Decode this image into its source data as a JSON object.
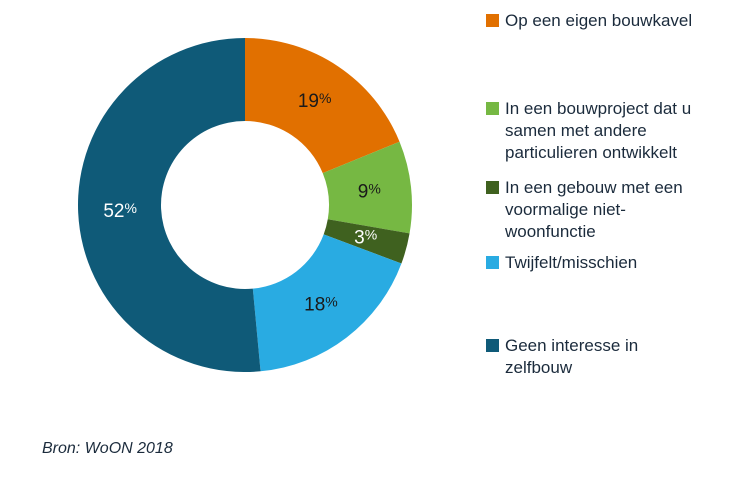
{
  "source_note": "Bron: WoON 2018",
  "chart_data": {
    "type": "pie",
    "subtype": "donut",
    "title": "",
    "unit": "%",
    "direction": "clockwise",
    "start_angle_deg": 0,
    "legend_position": "right",
    "categories": [
      "Op een eigen bouwkavel",
      "In een bouwproject dat u samen met andere particulieren ontwikkelt",
      "In een gebouw met een voormalige niet-woonfunctie",
      "Twijfelt/misschien",
      "Geen interesse in zelfbouw"
    ],
    "values": [
      19,
      9,
      3,
      18,
      52
    ],
    "data_labels": [
      "19%",
      "9%",
      "3%",
      "18%",
      "52%"
    ],
    "series": [
      {
        "name": "Op een eigen bouwkavel",
        "value": 19,
        "color": "#e17000",
        "label_color": "#1a1a1a"
      },
      {
        "name": "In een bouwproject dat u samen met andere particulieren ontwikkelt",
        "value": 9,
        "color": "#76b843",
        "label_color": "#1a1a1a"
      },
      {
        "name": "In een gebouw met een voormalige niet-woonfunctie",
        "value": 3,
        "color": "#3f611f",
        "label_color": "#ffffff"
      },
      {
        "name": "Twijfelt/misschien",
        "value": 18,
        "color": "#29abe2",
        "label_color": "#1a1a1a"
      },
      {
        "name": "Geen interesse in zelfbouw",
        "value": 52,
        "color": "#0f5a78",
        "label_color": "#ffffff"
      }
    ]
  },
  "legend": {
    "items": [
      {
        "lines": [
          "Op een eigen bouwkavel"
        ],
        "color": "#e17000"
      },
      {
        "lines": [
          "In een bouwproject dat u",
          "samen met andere",
          "particulieren ontwikkelt"
        ],
        "color": "#76b843"
      },
      {
        "lines": [
          "In een gebouw met een",
          "voormalige niet-",
          "woonfunctie"
        ],
        "color": "#3f611f"
      },
      {
        "lines": [
          "Twijfelt/misschien"
        ],
        "color": "#29abe2"
      },
      {
        "lines": [
          "Geen interesse in",
          "zelfbouw"
        ],
        "color": "#0f5a78"
      }
    ]
  }
}
